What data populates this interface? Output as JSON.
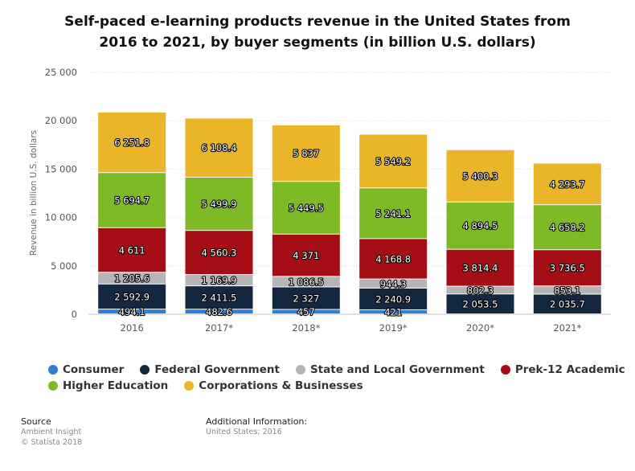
{
  "chart_data": {
    "type": "bar",
    "stacked": true,
    "title_line1": "Self-paced e-learning products revenue in the United States from",
    "title_line2": "2016 to 2021, by buyer segments (in billion U.S. dollars)",
    "ylabel": "Revenue in billion U.S. dollars",
    "ylim": [
      0,
      25000
    ],
    "yticks": [
      0,
      5000,
      10000,
      15000,
      20000,
      25000
    ],
    "ytick_labels": [
      "0",
      "5 000",
      "10 000",
      "15 000",
      "20 000",
      "25 000"
    ],
    "categories": [
      "2016",
      "2017*",
      "2018*",
      "2019*",
      "2020*",
      "2021*"
    ],
    "series": [
      {
        "name": "Consumer",
        "color": "#2f7ed8",
        "values": [
          494.1,
          482.6,
          457,
          421,
          0,
          0
        ],
        "labels": [
          "494.1",
          "482.6",
          "457",
          "421",
          "",
          ""
        ]
      },
      {
        "name": "Federal Government",
        "color": "#13283f",
        "values": [
          2592.9,
          2411.5,
          2327,
          2240.9,
          2053.5,
          2035.7
        ],
        "labels": [
          "2 592.9",
          "2 411.5",
          "2 327",
          "2 240.9",
          "2 053.5",
          "2 035.7"
        ]
      },
      {
        "name": "State and Local Government",
        "color": "#b5b5b5",
        "values": [
          1205.6,
          1169.9,
          1086.5,
          944.3,
          802.3,
          853.1
        ],
        "labels": [
          "1 205.6",
          "1 169.9",
          "1 086.5",
          "944.3",
          "802.3",
          "853.1"
        ]
      },
      {
        "name": "Prek-12 Academic",
        "color": "#a50e14",
        "values": [
          4611,
          4560.3,
          4371,
          4168.8,
          3814.4,
          3736.5
        ],
        "labels": [
          "4 611",
          "4 560.3",
          "4 371",
          "4 168.8",
          "3 814.4",
          "3 736.5"
        ]
      },
      {
        "name": "Higher Education",
        "color": "#7dba25",
        "values": [
          5694.7,
          5499.9,
          5449.5,
          5241.1,
          4894.5,
          4658.2
        ],
        "labels": [
          "5 694.7",
          "5 499.9",
          "5 449.5",
          "5 241.1",
          "4 894.5",
          "4 658.2"
        ]
      },
      {
        "name": "Corporations & Businesses",
        "color": "#ebb52a",
        "values": [
          6251.8,
          6108.4,
          5837,
          5549.2,
          5400.3,
          4293.7
        ],
        "labels": [
          "6 251.8",
          "6 108.4",
          "5 837",
          "5 549.2",
          "5 400.3",
          "4 293.7"
        ]
      }
    ],
    "legend_position": "bottom",
    "grid": true
  },
  "footer": {
    "source_title": "Source",
    "source_line1": "Ambient Insight",
    "source_line2": "© Statista 2018",
    "info_title": "Additional Information:",
    "info_line1": "United States; 2016"
  }
}
